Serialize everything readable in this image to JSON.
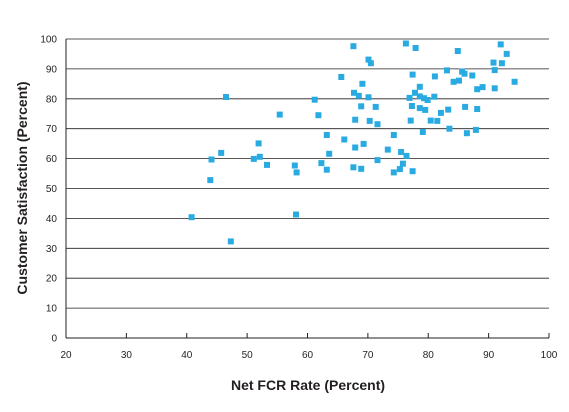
{
  "chart_data": {
    "type": "scatter",
    "xlabel": "Net FCR Rate (Percent)",
    "ylabel": "Customer Satisfaction (Percent)",
    "xlim": [
      20,
      100
    ],
    "ylim": [
      0,
      100
    ],
    "xticks": [
      20,
      30,
      40,
      50,
      60,
      70,
      80,
      90,
      100
    ],
    "yticks": [
      0,
      10,
      20,
      30,
      40,
      50,
      60,
      70,
      80,
      90,
      100
    ],
    "grid": "horizontal",
    "marker_color": "#29abe2",
    "points": [
      [
        67.6,
        97.6
      ],
      [
        76.3,
        98.5
      ],
      [
        77.9,
        97.0
      ],
      [
        70.1,
        93.1
      ],
      [
        70.5,
        91.9
      ],
      [
        84.9,
        96.0
      ],
      [
        92.0,
        98.2
      ],
      [
        93.0,
        95.0
      ],
      [
        90.8,
        92.1
      ],
      [
        91.0,
        89.6
      ],
      [
        92.2,
        91.9
      ],
      [
        86.0,
        88.4
      ],
      [
        85.6,
        89.1
      ],
      [
        87.3,
        87.8
      ],
      [
        83.1,
        89.5
      ],
      [
        81.1,
        87.5
      ],
      [
        77.4,
        88.1
      ],
      [
        84.2,
        85.7
      ],
      [
        85.1,
        86.1
      ],
      [
        89.0,
        83.9
      ],
      [
        88.1,
        83.2
      ],
      [
        94.3,
        85.7
      ],
      [
        91.0,
        83.5
      ],
      [
        65.6,
        87.3
      ],
      [
        69.1,
        85.0
      ],
      [
        78.6,
        84.0
      ],
      [
        77.8,
        82.0
      ],
      [
        76.9,
        80.3
      ],
      [
        78.6,
        80.8
      ],
      [
        79.3,
        80.2
      ],
      [
        79.9,
        79.6
      ],
      [
        81.0,
        80.7
      ],
      [
        67.7,
        82.0
      ],
      [
        68.5,
        81.0
      ],
      [
        70.1,
        80.5
      ],
      [
        61.2,
        79.7
      ],
      [
        71.3,
        77.3
      ],
      [
        68.9,
        77.5
      ],
      [
        77.3,
        77.6
      ],
      [
        78.6,
        76.9
      ],
      [
        79.5,
        76.3
      ],
      [
        82.1,
        75.3
      ],
      [
        83.3,
        76.4
      ],
      [
        86.1,
        77.3
      ],
      [
        88.1,
        76.6
      ],
      [
        46.5,
        80.6
      ],
      [
        61.8,
        74.5
      ],
      [
        55.4,
        74.7
      ],
      [
        67.9,
        73.0
      ],
      [
        70.3,
        72.6
      ],
      [
        71.6,
        71.5
      ],
      [
        77.1,
        72.7
      ],
      [
        80.4,
        72.7
      ],
      [
        81.5,
        72.6
      ],
      [
        83.5,
        70.0
      ],
      [
        87.9,
        69.6
      ],
      [
        86.4,
        68.5
      ],
      [
        79.1,
        68.9
      ],
      [
        74.3,
        67.9
      ],
      [
        63.2,
        67.9
      ],
      [
        66.1,
        66.4
      ],
      [
        51.9,
        65.1
      ],
      [
        69.3,
        64.9
      ],
      [
        67.9,
        63.7
      ],
      [
        73.3,
        63.0
      ],
      [
        75.5,
        62.2
      ],
      [
        63.6,
        61.6
      ],
      [
        76.4,
        60.9
      ],
      [
        71.6,
        59.5
      ],
      [
        45.7,
        61.9
      ],
      [
        44.1,
        59.7
      ],
      [
        51.1,
        59.9
      ],
      [
        52.1,
        60.6
      ],
      [
        53.3,
        57.9
      ],
      [
        57.9,
        57.7
      ],
      [
        58.2,
        55.4
      ],
      [
        62.3,
        58.5
      ],
      [
        63.2,
        56.3
      ],
      [
        67.6,
        57.1
      ],
      [
        68.9,
        56.6
      ],
      [
        74.3,
        55.4
      ],
      [
        75.3,
        56.5
      ],
      [
        75.8,
        58.3
      ],
      [
        77.4,
        55.8
      ],
      [
        43.9,
        52.8
      ],
      [
        40.8,
        40.4
      ],
      [
        58.1,
        41.3
      ],
      [
        47.3,
        32.3
      ]
    ]
  }
}
